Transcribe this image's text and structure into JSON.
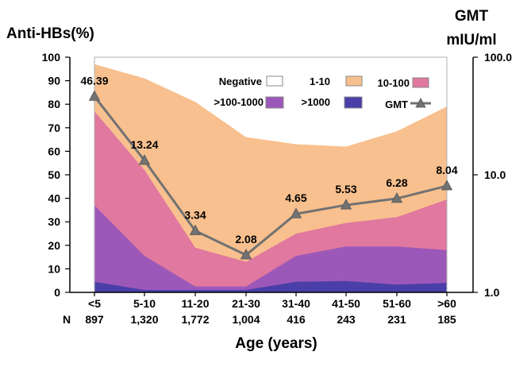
{
  "chart_data": {
    "type": "area",
    "xlabel": "Age (years)",
    "ylabel": "Anti-HBs(%)",
    "y2label_line1": "GMT",
    "y2label_line2": "mIU/ml",
    "ylim": [
      0,
      100
    ],
    "yticks": [
      "0",
      "10",
      "20",
      "30",
      "40",
      "50",
      "60",
      "70",
      "80",
      "90",
      "100"
    ],
    "y2lim": [
      1.0,
      100.0
    ],
    "y2scale": "log",
    "y2ticks": [
      {
        "value": 1.0,
        "label": "1.0"
      },
      {
        "value": 10.0,
        "label": "10.0"
      },
      {
        "value": 100.0,
        "label": "100.0"
      }
    ],
    "categories": [
      "<5",
      "5-10",
      "11-20",
      "21-30",
      "31-40",
      "41-50",
      "51-60",
      ">60"
    ],
    "n_label": "N",
    "n_values": [
      "897",
      "1,320",
      "1,772",
      "1,004",
      "416",
      "243",
      "231",
      "185"
    ],
    "stacked_series_cumulative_top": [
      {
        "name": ">1000",
        "color": "#4a3fa8",
        "values": [
          4.5,
          1,
          1,
          1,
          4.5,
          4.8,
          3.3,
          4
        ]
      },
      {
        "name": ">100-1000",
        "color": "#9c58b8",
        "values": [
          37,
          15.5,
          2.5,
          2.5,
          15.5,
          19.5,
          19.5,
          18
        ]
      },
      {
        "name": "10-100",
        "color": "#e0789f",
        "values": [
          77,
          52,
          19,
          13,
          25,
          29.5,
          32,
          39.5
        ]
      },
      {
        "name": "1-10",
        "color": "#f8c08e",
        "values": [
          97,
          91,
          81,
          66,
          63,
          62,
          68.5,
          79
        ]
      },
      {
        "name": "Negative",
        "color": "#ffffff",
        "values": [
          100,
          100,
          100,
          100,
          100,
          100,
          100,
          100
        ]
      }
    ],
    "gmt_series": {
      "name": "GMT",
      "color": "#727272",
      "values": [
        46.39,
        13.24,
        3.34,
        2.08,
        4.65,
        5.53,
        6.28,
        8.04
      ],
      "labels": [
        "46.39",
        "13.24",
        "3.34",
        "2.08",
        "4.65",
        "5.53",
        "6.28",
        "8.04"
      ]
    },
    "legend": {
      "placement": "top-right",
      "items": [
        {
          "label": "Negative",
          "color": "#ffffff",
          "kind": "box"
        },
        {
          "label": "1-10",
          "color": "#f8c08e",
          "kind": "box"
        },
        {
          "label": "10-100",
          "color": "#e0789f",
          "kind": "box"
        },
        {
          "label": ">100-1000",
          "color": "#9c58b8",
          "kind": "box"
        },
        {
          "label": ">1000",
          "color": "#4a3fa8",
          "kind": "box"
        },
        {
          "label": "GMT",
          "color": "#727272",
          "kind": "line"
        }
      ]
    }
  }
}
